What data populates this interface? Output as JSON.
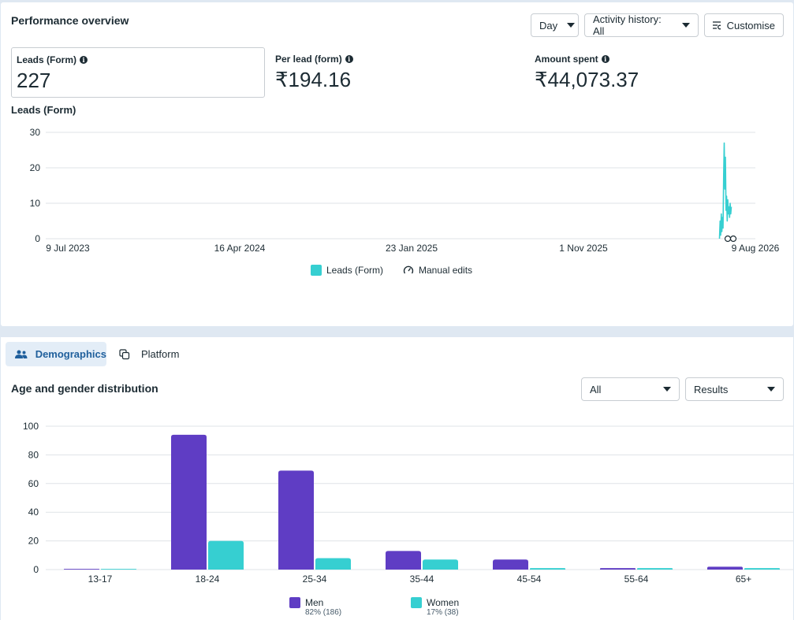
{
  "performance": {
    "title": "Performance overview",
    "day_button": "Day",
    "activity_button": "Activity history: All",
    "customise_button": "Customise",
    "metrics": [
      {
        "label": "Leads (Form)",
        "value": "227"
      },
      {
        "label": "Per lead (form)",
        "value": "₹194.16"
      },
      {
        "label": "Amount spent",
        "value": "₹44,073.37"
      }
    ],
    "chart_title": "Leads (Form)",
    "legend": {
      "leads": "Leads (Form)",
      "manual": "Manual edits"
    }
  },
  "tabs": [
    {
      "label": "Demographics",
      "active": true
    },
    {
      "label": "Platform",
      "active": false
    }
  ],
  "demographics": {
    "title": "Age and gender distribution",
    "filter_all": "All",
    "filter_results": "Results",
    "legend": [
      {
        "name": "Men",
        "sub": "82% (186)"
      },
      {
        "name": "Women",
        "sub": "17% (38)"
      }
    ]
  },
  "chart_data": [
    {
      "type": "line",
      "title": "Leads (Form)",
      "x_ticks": [
        "9 Jul 2023",
        "16 Apr 2024",
        "23 Jan 2025",
        "1 Nov 2025",
        "9 Aug 2026"
      ],
      "y_ticks": [
        0,
        10,
        20,
        30
      ],
      "ylim": [
        0,
        30
      ],
      "grid": true,
      "series": [
        {
          "name": "Leads (Form)",
          "color": "#36cfd1",
          "x": [
            "2026-07-18",
            "2026-07-19",
            "2026-07-20",
            "2026-07-21",
            "2026-07-22",
            "2026-07-23",
            "2026-07-24",
            "2026-07-25",
            "2026-07-26",
            "2026-07-27",
            "2026-07-28",
            "2026-07-29",
            "2026-07-30",
            "2026-07-31",
            "2026-08-01",
            "2026-08-02",
            "2026-08-03",
            "2026-08-04",
            "2026-08-05",
            "2026-08-06",
            "2026-08-07"
          ],
          "values": [
            0,
            5,
            1,
            7,
            2,
            6,
            3,
            18,
            27,
            14,
            23,
            8,
            12,
            5,
            11,
            7,
            9,
            6,
            10,
            7,
            9
          ]
        }
      ]
    },
    {
      "type": "bar",
      "title": "",
      "categories": [
        "13-17",
        "18-24",
        "25-34",
        "35-44",
        "45-54",
        "55-64",
        "65+"
      ],
      "ylim": [
        0,
        100
      ],
      "y_ticks": [
        0,
        20,
        40,
        60,
        80,
        100
      ],
      "grid": true,
      "legend_position": "bottom",
      "series": [
        {
          "name": "Men",
          "color": "#5f3dc4",
          "values": [
            0.5,
            94,
            69,
            13,
            7,
            1,
            2
          ]
        },
        {
          "name": "Women",
          "color": "#36cfd1",
          "values": [
            0.5,
            20,
            8,
            7,
            1,
            1,
            1
          ]
        }
      ]
    }
  ]
}
